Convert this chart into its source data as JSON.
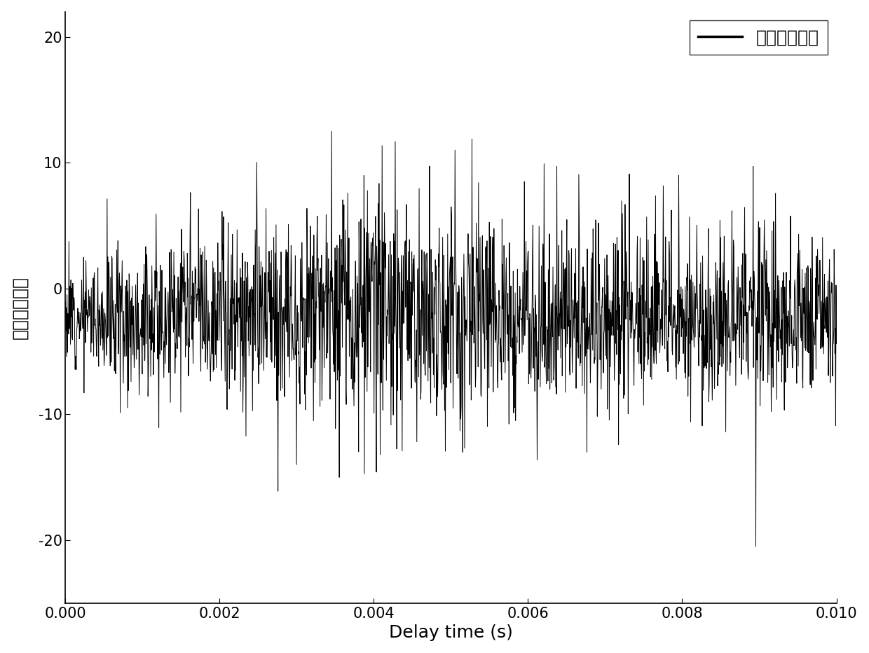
{
  "xlabel": "Delay time (s)",
  "ylabel": "光强相对涨落",
  "legend_label": "光强相对涨落",
  "line_color": "#000000",
  "background_color": "#ffffff",
  "xlim": [
    0.0,
    0.01
  ],
  "ylim": [
    -25,
    22
  ],
  "yticks": [
    -20,
    -10,
    0,
    10,
    20
  ],
  "xticks": [
    0.0,
    0.002,
    0.004,
    0.006,
    0.008,
    0.01
  ],
  "xlabel_fontsize": 18,
  "ylabel_fontsize": 18,
  "tick_fontsize": 15,
  "legend_fontsize": 18,
  "n_points": 2000,
  "seed": 12,
  "line_width": 0.7,
  "legend_loc": "upper right"
}
